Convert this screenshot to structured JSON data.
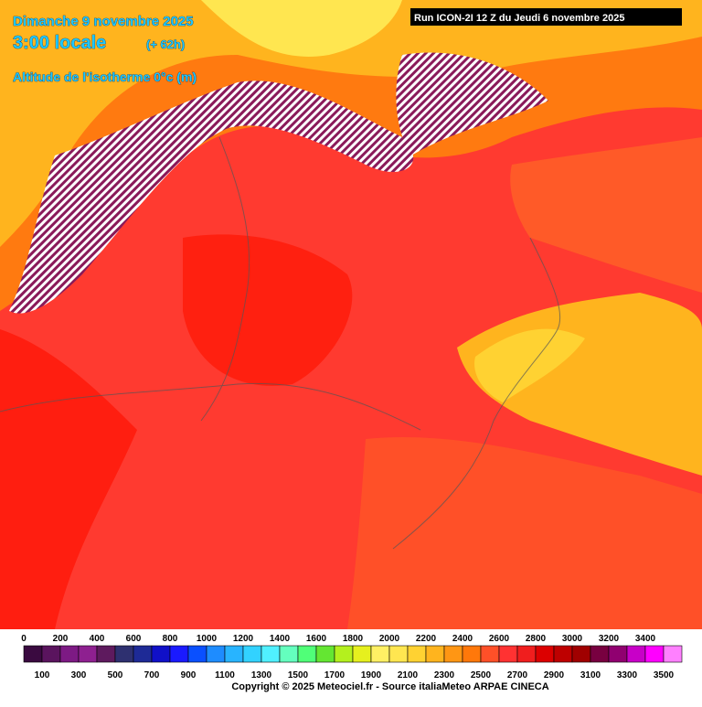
{
  "header": {
    "date": "Dimanche 9 novembre 2025",
    "time": "3:00 locale",
    "offset": "(+ 62h)",
    "parameter": "Altitude de l'isotherme 0°c (m)",
    "run": "Run ICON-2I 12 Z du Jeudi 6 novembre 2025"
  },
  "legend": {
    "values": [
      0,
      100,
      200,
      300,
      400,
      500,
      600,
      700,
      800,
      900,
      1000,
      1100,
      1200,
      1300,
      1400,
      1500,
      1600,
      1700,
      1800,
      1900,
      2000,
      2100,
      2200,
      2300,
      2400,
      2500,
      2600,
      2700,
      2800,
      2900,
      3000,
      3100,
      3200,
      3300,
      3400,
      3500
    ],
    "colors": [
      "#3a0a40",
      "#5a145e",
      "#7d1a84",
      "#8e2090",
      "#5e1a5e",
      "#2e3070",
      "#1e2a96",
      "#1010c8",
      "#1a1aff",
      "#0a50ff",
      "#1e8cff",
      "#28b4ff",
      "#32d2ff",
      "#50f0ff",
      "#64ffbe",
      "#50ff78",
      "#64e632",
      "#b4f01e",
      "#e6f01e",
      "#fff064",
      "#ffe650",
      "#ffd232",
      "#ffb41e",
      "#ff9614",
      "#ff780a",
      "#ff5028",
      "#ff3232",
      "#f01e1e",
      "#dc0000",
      "#be0000",
      "#a00000",
      "#780040",
      "#900070",
      "#c800c8",
      "#ff00ff",
      "#ff80ff"
    ]
  },
  "footer": {
    "copyright": "Copyright © 2025 Meteociel.fr - Source italiaMeteo ARPAE CINECA"
  }
}
